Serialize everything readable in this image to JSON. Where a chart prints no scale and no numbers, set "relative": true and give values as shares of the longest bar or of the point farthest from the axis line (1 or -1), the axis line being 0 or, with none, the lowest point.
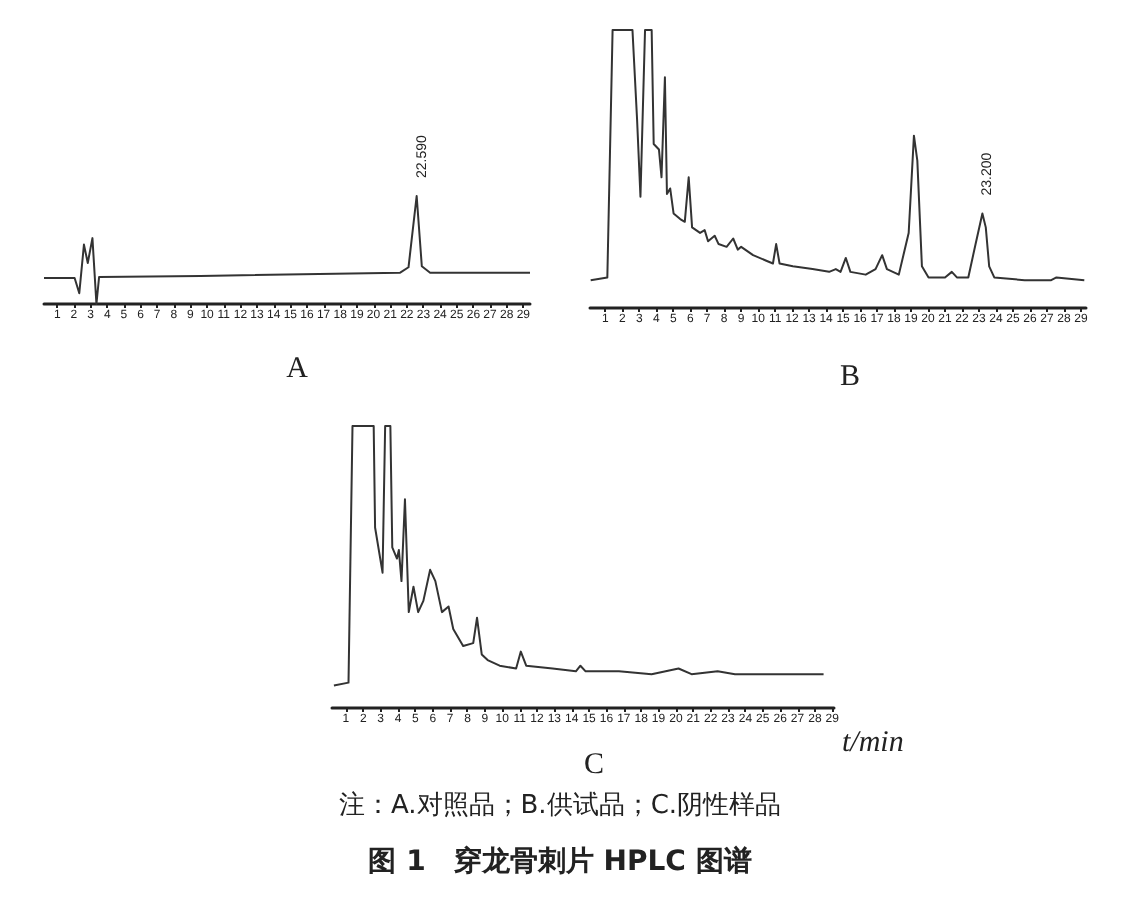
{
  "chart_data": [
    {
      "type": "line",
      "title": "A",
      "relative": true,
      "xlim": [
        0.2,
        29.4
      ],
      "xticks": [
        1,
        2,
        3,
        4,
        5,
        6,
        7,
        8,
        9,
        10,
        11,
        12,
        13,
        14,
        15,
        16,
        17,
        18,
        19,
        20,
        21,
        22,
        23,
        24,
        25,
        26,
        27,
        28,
        29
      ],
      "x": [
        0.2,
        2.04,
        2.32,
        2.6,
        2.83,
        3.11,
        3.35,
        3.51,
        9.6,
        21.6,
        22.1,
        22.59,
        22.9,
        23.4,
        29.4
      ],
      "series": [
        {
          "color": "#333333",
          "values": [
            0.24,
            0.24,
            0.1,
            0.55,
            0.38,
            0.61,
            0,
            0.25,
            0.26,
            0.29,
            0.34,
            1,
            0.35,
            0.29,
            0.29
          ]
        }
      ],
      "annotations": [
        {
          "text": "22.590",
          "x": 22.59,
          "y": 1
        }
      ]
    },
    {
      "type": "line",
      "title": "B",
      "relative": true,
      "xlim": [
        0.1,
        29.3
      ],
      "xticks": [
        1,
        2,
        3,
        4,
        5,
        6,
        7,
        8,
        9,
        10,
        11,
        12,
        13,
        14,
        15,
        16,
        17,
        18,
        19,
        20,
        21,
        22,
        23,
        24,
        25,
        26,
        27,
        28,
        29
      ],
      "x": [
        0.14,
        1.12,
        1.43,
        1.58,
        2.6,
        2.87,
        3.07,
        3.34,
        3.73,
        3.85,
        4.16,
        4.31,
        4.51,
        4.63,
        4.82,
        5.02,
        5.41,
        5.68,
        5.91,
        6.11,
        6.58,
        6.85,
        7.05,
        7.44,
        7.67,
        8.14,
        8.53,
        8.8,
        9.0,
        9.7,
        10.48,
        10.87,
        11.06,
        11.26,
        12.04,
        13.2,
        14.18,
        14.57,
        14.85,
        15.16,
        15.43,
        16.33,
        16.91,
        17.3,
        17.58,
        18.28,
        18.86,
        19.17,
        19.37,
        19.64,
        20.03,
        21.0,
        21.4,
        21.7,
        22.37,
        22.8,
        23.2,
        23.4,
        23.6,
        23.9,
        25.69,
        27.25,
        27.56,
        29.2
      ],
      "series": [
        {
          "color": "#333333",
          "values": [
            0.1,
            0.11,
            1,
            1,
            1,
            0.68,
            0.4,
            1,
            1,
            0.59,
            0.57,
            0.47,
            0.83,
            0.41,
            0.43,
            0.34,
            0.32,
            0.31,
            0.47,
            0.29,
            0.27,
            0.28,
            0.24,
            0.26,
            0.23,
            0.22,
            0.25,
            0.21,
            0.22,
            0.19,
            0.17,
            0.16,
            0.23,
            0.16,
            0.15,
            0.14,
            0.13,
            0.14,
            0.13,
            0.18,
            0.13,
            0.12,
            0.14,
            0.19,
            0.14,
            0.12,
            0.27,
            0.62,
            0.53,
            0.15,
            0.11,
            0.11,
            0.13,
            0.11,
            0.11,
            0.23,
            0.34,
            0.29,
            0.15,
            0.11,
            0.1,
            0.1,
            0.11,
            0.1
          ]
        }
      ],
      "annotations": [
        {
          "text": "23.200",
          "x": 23.2,
          "y": 0.34
        }
      ]
    },
    {
      "type": "line",
      "title": "C",
      "xlabel": "t/min",
      "relative": true,
      "xlim": [
        0.2,
        29.1
      ],
      "xticks": [
        1,
        2,
        3,
        4,
        5,
        6,
        7,
        8,
        9,
        10,
        11,
        12,
        13,
        14,
        15,
        16,
        17,
        18,
        19,
        20,
        21,
        22,
        23,
        24,
        25,
        26,
        27,
        28,
        29
      ],
      "x": [
        0.31,
        1.15,
        1.38,
        1.46,
        2.6,
        2.68,
        3.11,
        3.26,
        3.56,
        3.67,
        3.94,
        4.05,
        4.2,
        4.4,
        4.62,
        4.89,
        5.16,
        5.46,
        5.85,
        6.15,
        6.53,
        6.91,
        7.18,
        7.75,
        8.33,
        8.55,
        8.82,
        9.16,
        9.85,
        10.8,
        11.07,
        11.38,
        12.9,
        14.24,
        14.5,
        14.8,
        16.72,
        18.6,
        20.15,
        20.9,
        22.4,
        23.4,
        26.3,
        28.5
      ],
      "series": [
        {
          "color": "#333333",
          "values": [
            0.08,
            0.09,
            1,
            1,
            1,
            0.64,
            0.48,
            1,
            1,
            0.57,
            0.53,
            0.56,
            0.45,
            0.74,
            0.34,
            0.43,
            0.34,
            0.38,
            0.49,
            0.45,
            0.34,
            0.36,
            0.28,
            0.22,
            0.23,
            0.32,
            0.19,
            0.17,
            0.15,
            0.14,
            0.2,
            0.15,
            0.14,
            0.13,
            0.15,
            0.13,
            0.13,
            0.12,
            0.14,
            0.12,
            0.13,
            0.12,
            0.12,
            0.12
          ]
        }
      ],
      "annotations": [
        "注：A.对照品；B.供试品；C.阴性样品",
        "图 1　穿龙骨刺片 HPLC 图谱"
      ]
    }
  ]
}
